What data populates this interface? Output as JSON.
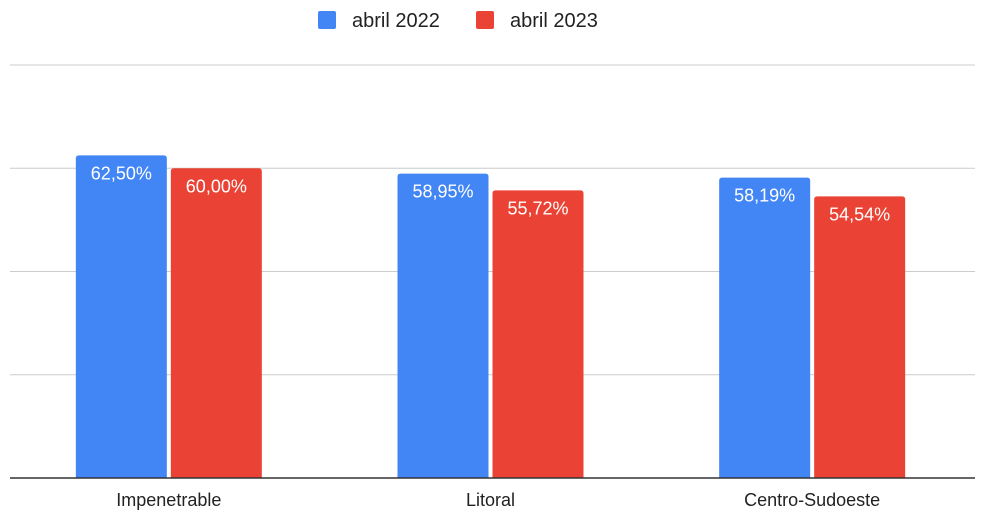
{
  "chart_data": {
    "type": "bar",
    "categories": [
      "Impenetrable",
      "Litoral",
      "Centro-Sudoeste"
    ],
    "series": [
      {
        "name": "abril 2022",
        "values": [
          62.5,
          58.95,
          58.19
        ],
        "labels": [
          "62,50%",
          "58,95%",
          "58,19%"
        ],
        "color": "#4285f4"
      },
      {
        "name": "abril 2023",
        "values": [
          60.0,
          55.72,
          54.54
        ],
        "labels": [
          "60,00%",
          "55,72%",
          "54,54%"
        ],
        "color": "#ea4335"
      }
    ],
    "ylim": [
      0,
      80
    ],
    "grid": true,
    "legend_position": "top-center",
    "title": "",
    "xlabel": "",
    "ylabel": ""
  }
}
